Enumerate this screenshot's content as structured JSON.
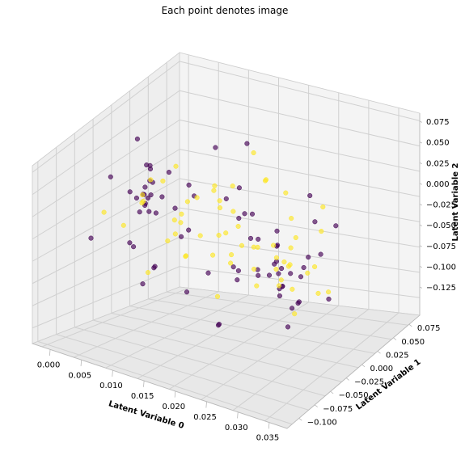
{
  "chart_data": {
    "type": "scatter",
    "title": "Each point denotes image",
    "xlabel": "Latent Variable 0",
    "ylabel": "Latent Variable 1",
    "zlabel": "Latent Variable 2",
    "xlim": [
      -0.002,
      0.038
    ],
    "ylim": [
      -0.11,
      0.09
    ],
    "zlim": [
      -0.135,
      0.08
    ],
    "xticks": [
      "0.000",
      "0.005",
      "0.010",
      "0.015",
      "0.020",
      "0.025",
      "0.030",
      "0.035"
    ],
    "yticks": [
      "−0.100",
      "−0.075",
      "−0.050",
      "−0.025",
      "0.000",
      "0.025",
      "0.050",
      "0.075"
    ],
    "zticks": [
      "0.075",
      "0.050",
      "0.025",
      "0.000",
      "−0.025",
      "−0.050",
      "−0.075",
      "−0.100",
      "−0.125"
    ],
    "grid": true,
    "colors": {
      "class_0": "#440154",
      "class_1": "#fde725"
    },
    "series": [
      {
        "values": [
          [
            0.006,
            -0.02,
            0.02
          ],
          [
            0.007,
            -0.015,
            0.035
          ],
          [
            0.005,
            0.0,
            0.02
          ],
          [
            0.008,
            -0.03,
            0.01
          ],
          [
            0.004,
            0.01,
            0.03
          ],
          [
            0.006,
            -0.025,
            0.0
          ],
          [
            0.007,
            -0.01,
            -0.01
          ],
          [
            0.005,
            -0.005,
            0.045
          ],
          [
            0.009,
            -0.02,
            0.025
          ],
          [
            0.003,
            0.02,
            0.015
          ],
          [
            0.006,
            -0.04,
            -0.03
          ],
          [
            0.008,
            0.0,
            0.04
          ],
          [
            0.004,
            -0.015,
            -0.06
          ],
          [
            0.007,
            -0.03,
            -0.09
          ],
          [
            0.002,
            0.01,
            0.06
          ],
          [
            0.01,
            -0.01,
            0.005
          ],
          [
            0.005,
            -0.02,
            0.012
          ],
          [
            0.006,
            -0.018,
            0.018
          ],
          [
            0.0065,
            -0.022,
            0.008
          ],
          [
            0.0055,
            -0.012,
            0.022
          ],
          [
            0.007,
            -0.026,
            0.015
          ],
          [
            0.006,
            -0.008,
            0.01
          ],
          [
            0.005,
            -0.03,
            0.028
          ],
          [
            0.012,
            -0.02,
            -0.02
          ],
          [
            0.003,
            -0.04,
            0.05
          ],
          [
            0.008,
            0.03,
            0.0
          ],
          [
            0.011,
            -0.05,
            -0.04
          ],
          [
            0.009,
            0.02,
            -0.05
          ],
          [
            0.013,
            -0.01,
            0.03
          ],
          [
            0.002,
            -0.06,
            -0.02
          ],
          [
            0.028,
            -0.03,
            0.0
          ],
          [
            0.03,
            -0.04,
            -0.02
          ],
          [
            0.027,
            -0.02,
            0.01
          ],
          [
            0.031,
            -0.05,
            -0.01
          ],
          [
            0.029,
            -0.035,
            -0.03
          ],
          [
            0.026,
            -0.01,
            0.02
          ],
          [
            0.03,
            -0.06,
            0.01
          ],
          [
            0.032,
            -0.045,
            -0.04
          ],
          [
            0.028,
            -0.025,
            -0.05
          ],
          [
            0.025,
            -0.04,
            0.03
          ],
          [
            0.029,
            -0.032,
            -0.005
          ],
          [
            0.03,
            -0.028,
            -0.012
          ],
          [
            0.0285,
            -0.038,
            0.004
          ],
          [
            0.031,
            -0.022,
            -0.018
          ],
          [
            0.027,
            -0.048,
            -0.008
          ],
          [
            0.033,
            -0.03,
            0.02
          ],
          [
            0.024,
            -0.02,
            -0.03
          ],
          [
            0.03,
            -0.015,
            -0.06
          ],
          [
            0.034,
            -0.055,
            -0.02
          ],
          [
            0.026,
            -0.07,
            0.0
          ],
          [
            0.02,
            -0.01,
            0.02
          ],
          [
            0.022,
            0.0,
            -0.01
          ],
          [
            0.018,
            0.01,
            0.04
          ],
          [
            0.021,
            -0.02,
            -0.04
          ],
          [
            0.019,
            0.02,
            0.0
          ],
          [
            0.023,
            -0.03,
            0.05
          ],
          [
            0.017,
            0.0,
            0.03
          ],
          [
            0.024,
            0.01,
            -0.02
          ],
          [
            0.016,
            -0.05,
            -0.06
          ],
          [
            0.022,
            -0.06,
            -0.08
          ],
          [
            0.025,
            0.04,
            -0.07
          ],
          [
            0.02,
            0.05,
            -0.1
          ],
          [
            0.015,
            0.03,
            -0.09
          ],
          [
            0.014,
            0.06,
            0.05
          ],
          [
            0.033,
            -0.02,
            0.06
          ],
          [
            0.035,
            -0.08,
            -0.03
          ],
          [
            0.012,
            -0.07,
            0.07
          ],
          [
            0.031,
            0.02,
            -0.08
          ],
          [
            0.036,
            -0.04,
            0.04
          ],
          [
            0.019,
            -0.03,
            -0.11
          ],
          [
            0.008,
            0.07,
            0.02
          ],
          [
            0.015,
            -0.09,
            0.0
          ],
          [
            0.027,
            0.03,
            0.04
          ],
          [
            0.029,
            0.05,
            -0.01
          ],
          [
            0.01,
            0.04,
            -0.12
          ]
        ]
      },
      {
        "values": [
          [
            0.012,
            -0.03,
            0.01
          ],
          [
            0.013,
            -0.02,
            0.03
          ],
          [
            0.011,
            -0.01,
            0.0
          ],
          [
            0.014,
            -0.04,
            0.02
          ],
          [
            0.015,
            -0.02,
            -0.01
          ],
          [
            0.016,
            0.0,
            0.015
          ],
          [
            0.017,
            -0.01,
            0.035
          ],
          [
            0.018,
            -0.03,
            -0.02
          ],
          [
            0.014,
            0.01,
            0.025
          ],
          [
            0.013,
            -0.05,
            0.0
          ],
          [
            0.019,
            -0.02,
            0.005
          ],
          [
            0.02,
            -0.04,
            0.02
          ],
          [
            0.021,
            -0.015,
            -0.01
          ],
          [
            0.022,
            -0.03,
            0.03
          ],
          [
            0.015,
            -0.025,
            0.045
          ],
          [
            0.016,
            0.02,
            -0.005
          ],
          [
            0.023,
            -0.05,
            0.01
          ],
          [
            0.024,
            -0.02,
            0.0
          ],
          [
            0.025,
            -0.035,
            -0.015
          ],
          [
            0.018,
            0.0,
            0.05
          ],
          [
            0.026,
            -0.045,
            0.025
          ],
          [
            0.027,
            -0.025,
            0.015
          ],
          [
            0.028,
            -0.06,
            -0.01
          ],
          [
            0.029,
            -0.04,
            0.0
          ],
          [
            0.03,
            -0.02,
            0.03
          ],
          [
            0.031,
            -0.035,
            -0.025
          ],
          [
            0.032,
            -0.05,
            0.02
          ],
          [
            0.033,
            -0.015,
            -0.04
          ],
          [
            0.028,
            -0.03,
            0.005
          ],
          [
            0.03,
            -0.042,
            -0.01
          ],
          [
            0.029,
            -0.018,
            0.012
          ],
          [
            0.031,
            -0.055,
            -0.005
          ],
          [
            0.034,
            -0.03,
            0.01
          ],
          [
            0.035,
            -0.07,
            -0.02
          ],
          [
            0.027,
            0.0,
            -0.03
          ],
          [
            0.026,
            -0.08,
            0.03
          ],
          [
            0.005,
            -0.01,
            0.0
          ],
          [
            0.006,
            0.01,
            0.015
          ],
          [
            0.004,
            -0.03,
            -0.02
          ],
          [
            0.007,
            0.02,
            0.03
          ],
          [
            0.003,
            -0.05,
            0.01
          ],
          [
            0.008,
            -0.04,
            0.04
          ],
          [
            0.002,
            0.03,
            -0.01
          ],
          [
            0.009,
            0.0,
            -0.04
          ],
          [
            0.01,
            -0.06,
            0.05
          ],
          [
            0.011,
            0.04,
            0.0
          ],
          [
            0.012,
            -0.07,
            -0.03
          ],
          [
            0.02,
            0.03,
            0.04
          ],
          [
            0.022,
            0.05,
            -0.02
          ],
          [
            0.019,
            -0.08,
            0.02
          ],
          [
            0.024,
            0.02,
            -0.05
          ],
          [
            0.017,
            0.06,
            0.01
          ],
          [
            0.025,
            -0.09,
            -0.01
          ],
          [
            0.028,
            0.04,
            0.02
          ],
          [
            0.032,
            0.01,
            -0.06
          ],
          [
            0.034,
            -0.02,
            0.05
          ],
          [
            0.036,
            -0.06,
            0.03
          ],
          [
            0.014,
            0.07,
            0.03
          ],
          [
            0.021,
            -0.1,
            0.04
          ],
          [
            0.018,
            0.08,
            -0.02
          ]
        ]
      }
    ]
  }
}
